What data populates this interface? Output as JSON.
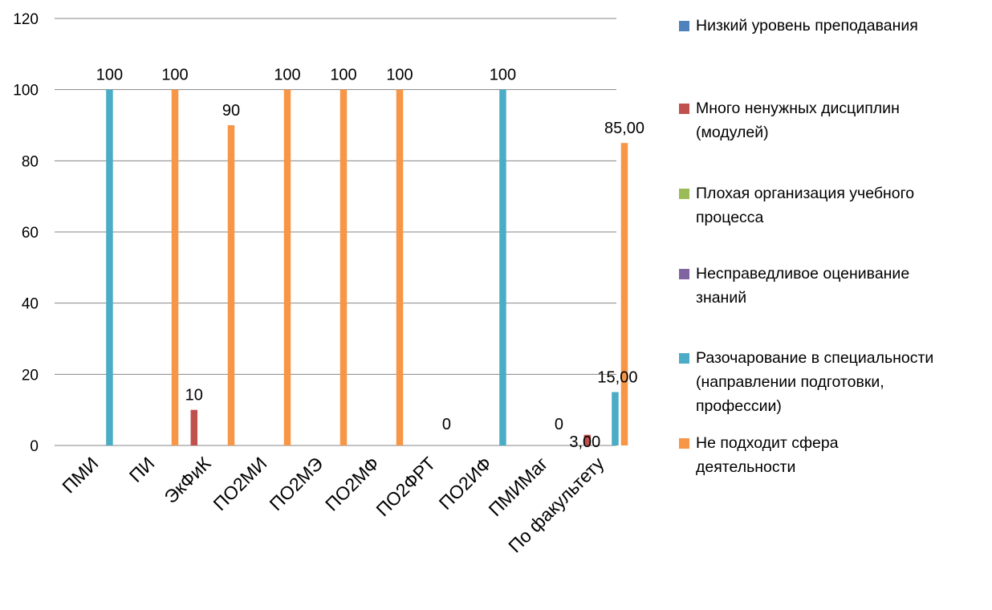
{
  "chart_data": {
    "type": "bar",
    "ylim": [
      0,
      120
    ],
    "yticks": [
      0,
      20,
      40,
      60,
      80,
      100,
      120
    ],
    "grid": true,
    "legend_position": "right",
    "categories": [
      "ПМИ",
      "ПИ",
      "ЭкФиК",
      "ПО2МИ",
      "ПО2МЭ",
      "ПО2МФ",
      "ПО2ФРТ",
      "ПО2ИФ",
      "ПМИМаг",
      "По факультету"
    ],
    "series": [
      {
        "name": "Низкий уровень преподавания",
        "color": "#4F81BD",
        "values": [
          null,
          null,
          null,
          null,
          null,
          null,
          null,
          null,
          null,
          null
        ],
        "labels": [
          null,
          null,
          null,
          null,
          null,
          null,
          null,
          null,
          null,
          null
        ]
      },
      {
        "name": "Много ненужных дисциплин\n(модулей)",
        "color": "#C0504D",
        "values": [
          null,
          null,
          10,
          null,
          null,
          null,
          null,
          null,
          null,
          3
        ],
        "labels": [
          null,
          null,
          "10",
          null,
          null,
          null,
          null,
          null,
          null,
          "3,00"
        ]
      },
      {
        "name": "Плохая организация учебного\nпроцесса",
        "color": "#9BBB59",
        "values": [
          null,
          null,
          null,
          null,
          null,
          null,
          null,
          null,
          null,
          null
        ],
        "labels": [
          null,
          null,
          null,
          null,
          null,
          null,
          null,
          null,
          null,
          null
        ]
      },
      {
        "name": "Несправедливое оценивание\nзнаний",
        "color": "#8064A2",
        "values": [
          null,
          null,
          null,
          null,
          null,
          null,
          null,
          null,
          null,
          null
        ],
        "labels": [
          null,
          null,
          null,
          null,
          null,
          null,
          null,
          null,
          null,
          null
        ]
      },
      {
        "name": "Разочарование в специальности\n(направлении подготовки,\nпрофессии)",
        "color": "#4BACC6",
        "values": [
          100,
          null,
          null,
          null,
          null,
          null,
          0,
          100,
          0,
          15
        ],
        "labels": [
          "100",
          null,
          null,
          null,
          null,
          null,
          "0",
          "100",
          "0",
          "15,00"
        ]
      },
      {
        "name": "Не подходит сфера\nдеятельности",
        "color": "#F79646",
        "values": [
          null,
          100,
          90,
          100,
          100,
          100,
          null,
          null,
          null,
          85
        ],
        "labels": [
          null,
          "100",
          "90",
          "100",
          "100",
          "100",
          null,
          null,
          null,
          "85,00"
        ]
      }
    ]
  }
}
